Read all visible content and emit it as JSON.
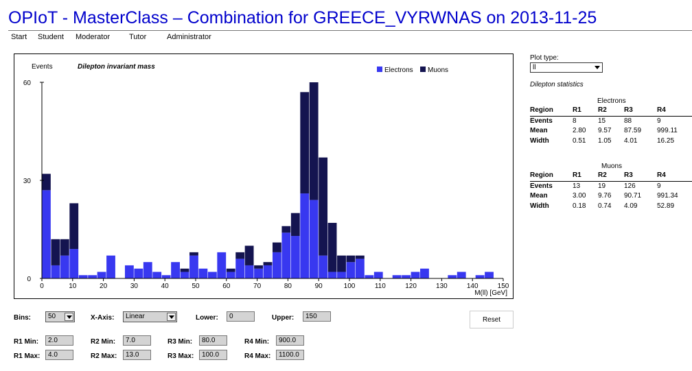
{
  "header": {
    "title": "OPIoT - MasterClass – Combination for GREECE_VYRWNAS on 2013-11-25",
    "nav": [
      "Start",
      "Student",
      "Moderator",
      "Tutor",
      "Administrator"
    ]
  },
  "chart_data": {
    "type": "bar",
    "stacked": true,
    "title": "Dilepton invariant mass",
    "ylabel": "Events",
    "xlabel": "M(ll) [GeV]",
    "xlim": [
      0,
      150
    ],
    "ylim": [
      0,
      60
    ],
    "bin_width": 3,
    "x": [
      0,
      3,
      6,
      9,
      12,
      15,
      18,
      21,
      24,
      27,
      30,
      33,
      36,
      39,
      42,
      45,
      48,
      51,
      54,
      57,
      60,
      63,
      66,
      69,
      72,
      75,
      78,
      81,
      84,
      87,
      90,
      93,
      96,
      99,
      102,
      105,
      108,
      111,
      114,
      117,
      120,
      123,
      126,
      129,
      132,
      135,
      138,
      141,
      144,
      147
    ],
    "x_ticks": [
      0,
      10,
      20,
      30,
      40,
      50,
      60,
      70,
      80,
      90,
      100,
      110,
      120,
      130,
      140,
      150
    ],
    "y_ticks": [
      0,
      30,
      60
    ],
    "legend_position": "top-right",
    "grid": false,
    "series": [
      {
        "name": "Electrons",
        "color": "#3838f0",
        "values": [
          27,
          4,
          7,
          9,
          1,
          1,
          2,
          7,
          0,
          4,
          3,
          5,
          2,
          1,
          5,
          2,
          7,
          3,
          2,
          8,
          2,
          6,
          4,
          3,
          4,
          8,
          14,
          13,
          26,
          24,
          7,
          2,
          2,
          5,
          6,
          1,
          2,
          0,
          1,
          1,
          2,
          3,
          0,
          0,
          1,
          2,
          0,
          1,
          2,
          0
        ]
      },
      {
        "name": "Muons",
        "color": "#141450",
        "values": [
          5,
          8,
          5,
          14,
          0,
          0,
          0,
          0,
          0,
          0,
          0,
          0,
          0,
          0,
          0,
          1,
          1,
          0,
          0,
          0,
          1,
          2,
          6,
          1,
          1,
          3,
          2,
          7,
          31,
          36,
          30,
          15,
          5,
          2,
          1,
          0,
          0,
          0,
          0,
          0,
          0,
          0,
          0,
          0,
          0,
          0,
          0,
          0,
          0,
          0
        ]
      }
    ]
  },
  "side_panel": {
    "plot_type_label": "Plot type:",
    "plot_type_value": "ll",
    "stats_title": "Dilepton statistics",
    "electrons": {
      "caption": "Electrons",
      "header": [
        "Region",
        "R1",
        "R2",
        "R3",
        "R4"
      ],
      "rows": [
        [
          "Events",
          "8",
          "15",
          "88",
          "9"
        ],
        [
          "Mean",
          "2.80",
          "9.57",
          "87.59",
          "999.11"
        ],
        [
          "Width",
          "0.51",
          "1.05",
          "4.01",
          "16.25"
        ]
      ]
    },
    "muons": {
      "caption": "Muons",
      "header": [
        "Region",
        "R1",
        "R2",
        "R3",
        "R4"
      ],
      "rows": [
        [
          "Events",
          "13",
          "19",
          "126",
          "9"
        ],
        [
          "Mean",
          "3.00",
          "9.76",
          "90.71",
          "991.34"
        ],
        [
          "Width",
          "0.18",
          "0.74",
          "4.09",
          "52.89"
        ]
      ]
    }
  },
  "controls": {
    "bins_label": "Bins:",
    "bins_value": "50",
    "xaxis_label": "X-Axis:",
    "xaxis_value": "Linear",
    "lower_label": "Lower:",
    "lower_value": "0",
    "upper_label": "Upper:",
    "upper_value": "150",
    "reset_label": "Reset",
    "regions": [
      {
        "min_label": "R1 Min:",
        "min": "2.0",
        "max_label": "R1 Max:",
        "max": "4.0"
      },
      {
        "min_label": "R2 Min:",
        "min": "7.0",
        "max_label": "R2 Max:",
        "max": "13.0"
      },
      {
        "min_label": "R3 Min:",
        "min": "80.0",
        "max_label": "R3 Max:",
        "max": "100.0"
      },
      {
        "min_label": "R4 Min:",
        "min": "900.0",
        "max_label": "R4 Max:",
        "max": "1100.0"
      }
    ]
  }
}
